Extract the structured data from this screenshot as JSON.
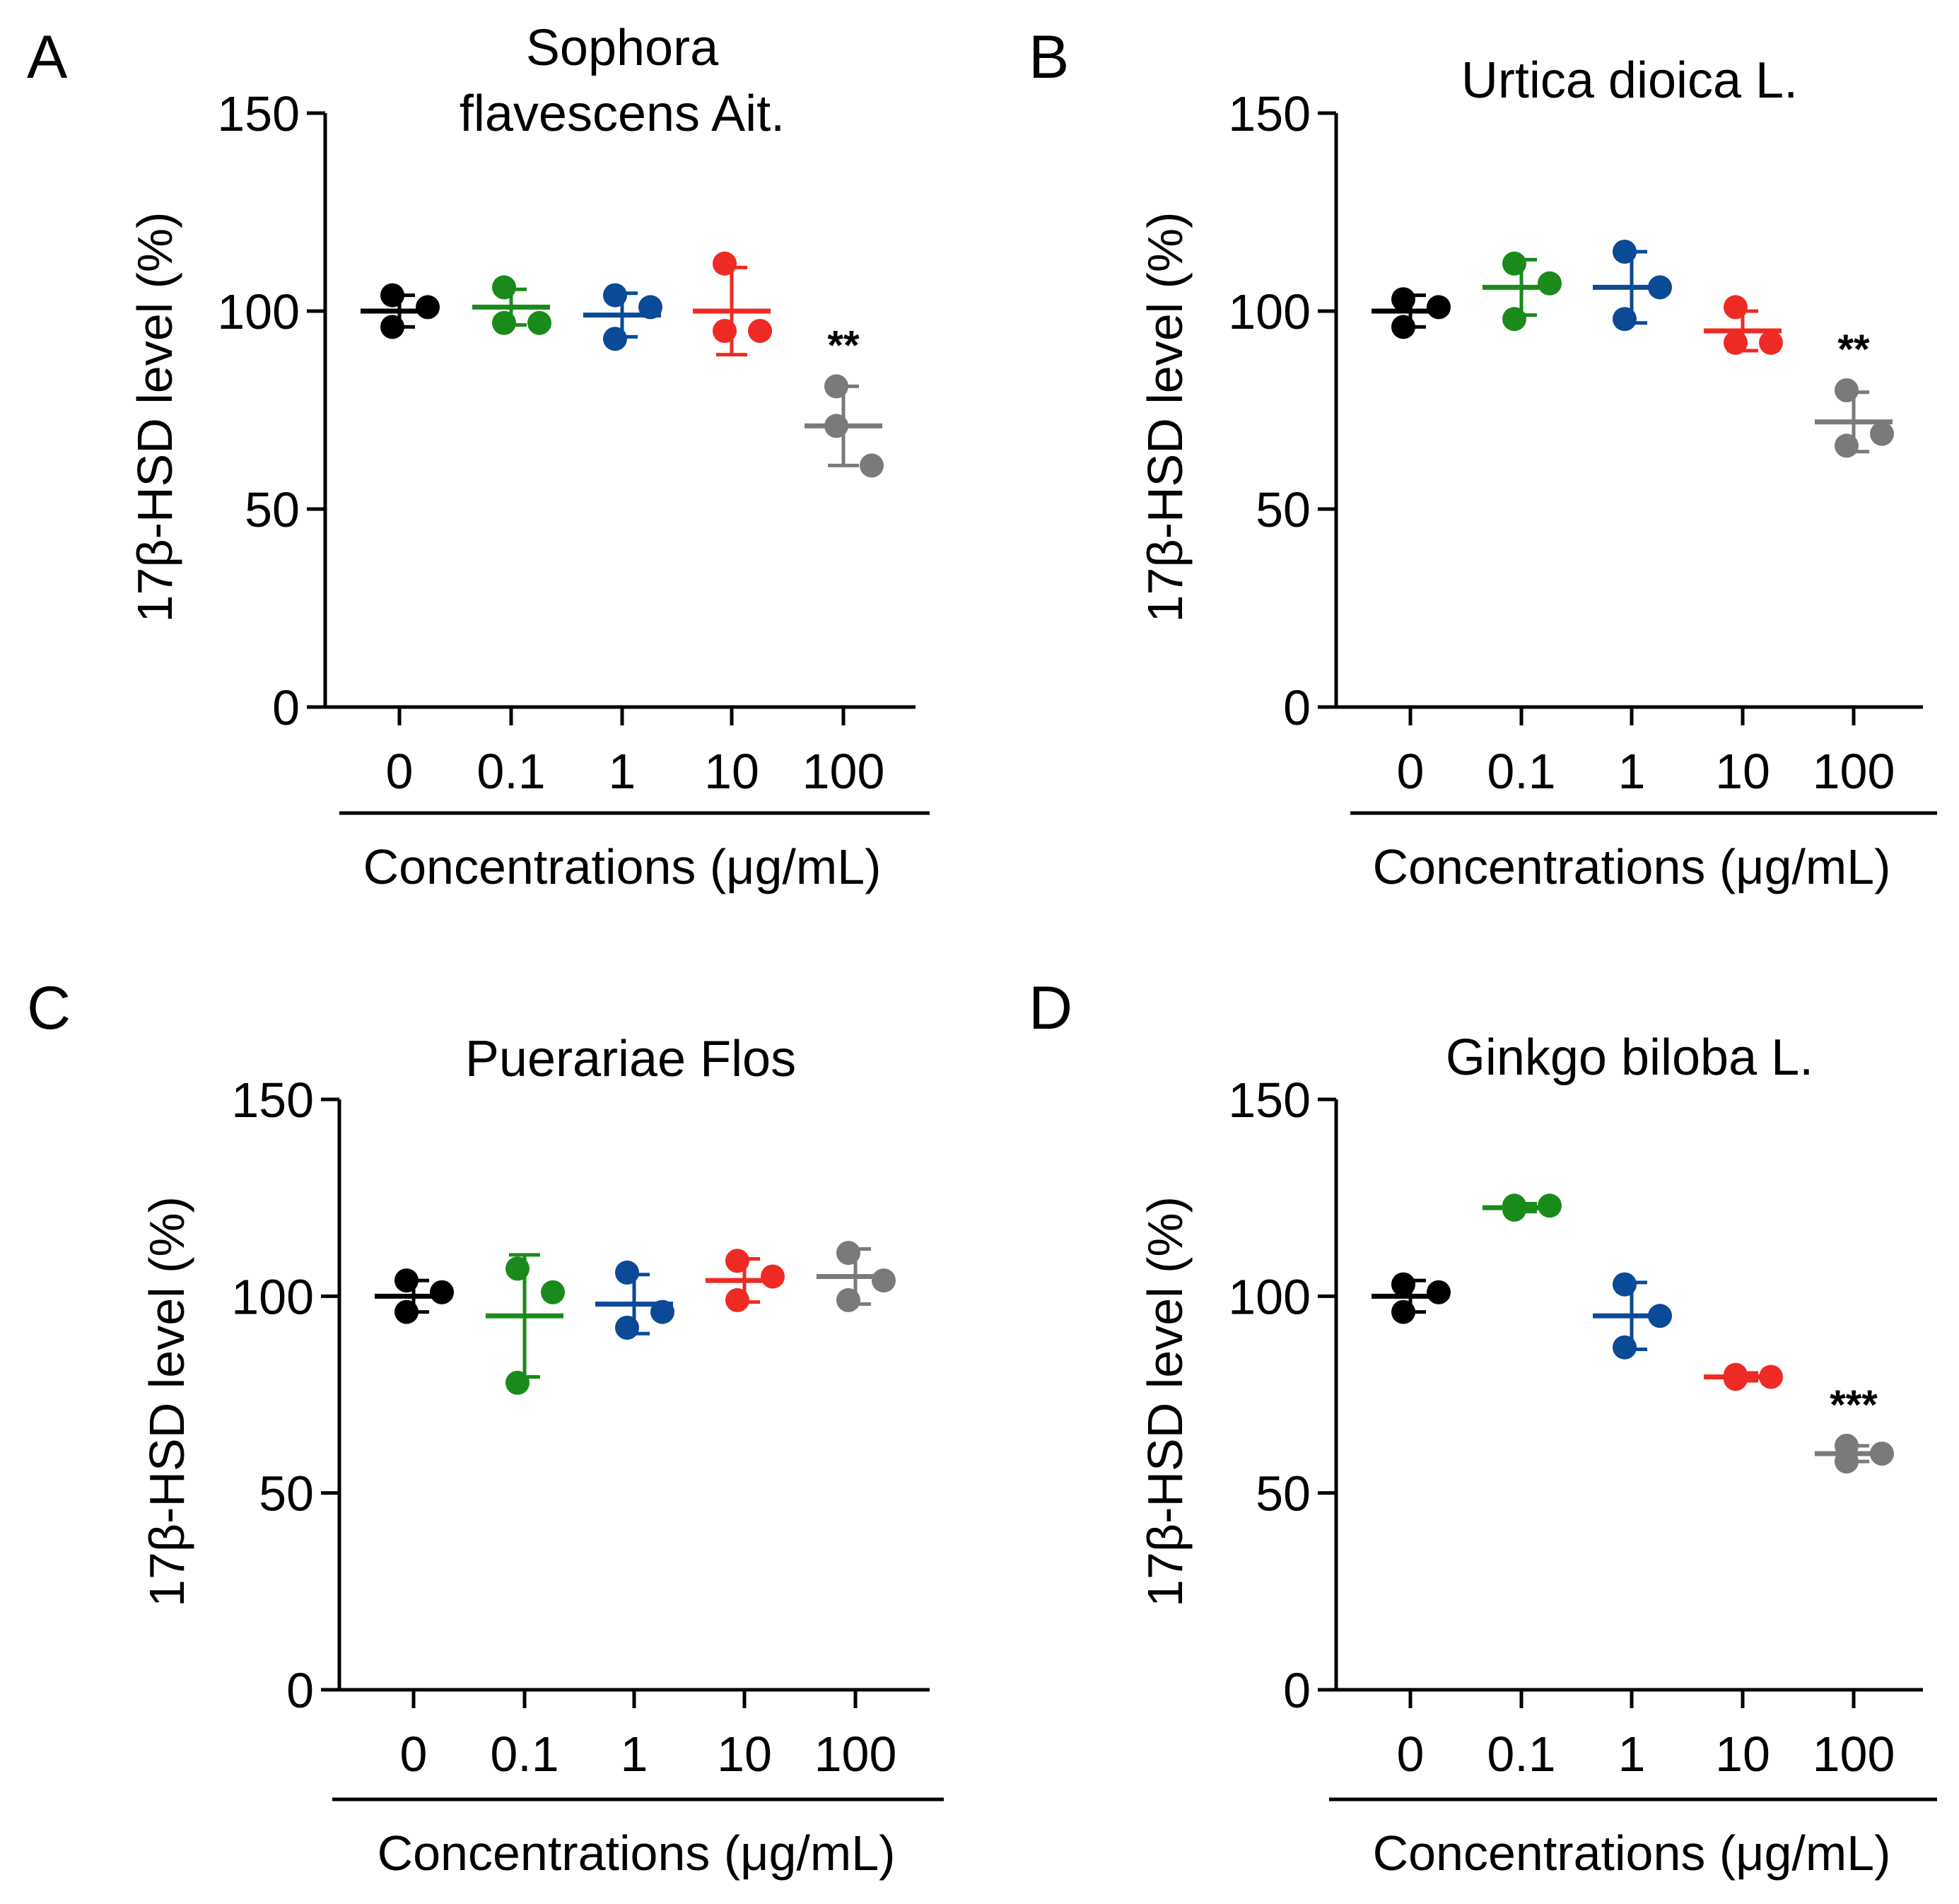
{
  "figure": {
    "colors": {
      "0": "#000000",
      "0.1": "#1a8a1a",
      "1": "#0a4a96",
      "10": "#ee2a24",
      "100": "#7a7a7a"
    }
  },
  "chart_data": [
    {
      "type": "scatter",
      "panel": "A",
      "title": "Sophora flavescens Ait.",
      "title_lines": [
        "Sophora",
        "flavescens Ait."
      ],
      "ylabel": "17β-HSD level (%)",
      "xlabel": "Concentrations (μg/mL)",
      "categories": [
        "0",
        "0.1",
        "1",
        "10",
        "100"
      ],
      "yticks": [
        0,
        50,
        100,
        150
      ],
      "ylim": [
        0,
        150
      ],
      "groups": [
        {
          "category": "0",
          "points": [
            104,
            96,
            101
          ],
          "mean": 100,
          "sd": 4
        },
        {
          "category": "0.1",
          "points": [
            106,
            97,
            97
          ],
          "mean": 101,
          "sd": 4.5
        },
        {
          "category": "1",
          "points": [
            104,
            93,
            101
          ],
          "mean": 99,
          "sd": 5.5
        },
        {
          "category": "10",
          "points": [
            112,
            95,
            95
          ],
          "mean": 100,
          "sd": 11
        },
        {
          "category": "100",
          "points": [
            81,
            71,
            61
          ],
          "mean": 71,
          "sd": 10,
          "sig": "**"
        }
      ]
    },
    {
      "type": "scatter",
      "panel": "B",
      "title": "Urtica dioica L.",
      "title_lines": [
        "Urtica dioica L."
      ],
      "ylabel": "17β-HSD level (%)",
      "xlabel": "Concentrations (μg/mL)",
      "categories": [
        "0",
        "0.1",
        "1",
        "10",
        "100"
      ],
      "yticks": [
        0,
        50,
        100,
        150
      ],
      "ylim": [
        0,
        150
      ],
      "groups": [
        {
          "category": "0",
          "points": [
            103,
            96,
            101
          ],
          "mean": 100,
          "sd": 4
        },
        {
          "category": "0.1",
          "points": [
            112,
            98,
            107
          ],
          "mean": 106,
          "sd": 7
        },
        {
          "category": "1",
          "points": [
            115,
            98,
            106
          ],
          "mean": 106,
          "sd": 9
        },
        {
          "category": "10",
          "points": [
            101,
            92,
            92
          ],
          "mean": 95,
          "sd": 5
        },
        {
          "category": "100",
          "points": [
            80,
            66,
            69
          ],
          "mean": 72,
          "sd": 7.5,
          "sig": "**"
        }
      ]
    },
    {
      "type": "scatter",
      "panel": "C",
      "title": "Puerariae Flos",
      "title_lines": [
        "Puerariae Flos"
      ],
      "ylabel": "17β-HSD level (%)",
      "xlabel": "Concentrations (μg/mL)",
      "categories": [
        "0",
        "0.1",
        "1",
        "10",
        "100"
      ],
      "yticks": [
        0,
        50,
        100,
        150
      ],
      "ylim": [
        0,
        150
      ],
      "groups": [
        {
          "category": "0",
          "points": [
            104,
            96,
            101
          ],
          "mean": 100,
          "sd": 4
        },
        {
          "category": "0.1",
          "points": [
            107,
            78,
            101
          ],
          "mean": 95,
          "sd": 15.5
        },
        {
          "category": "1",
          "points": [
            106,
            92,
            96
          ],
          "mean": 98,
          "sd": 7.5
        },
        {
          "category": "10",
          "points": [
            109,
            99,
            105
          ],
          "mean": 104,
          "sd": 5.5
        },
        {
          "category": "100",
          "points": [
            111,
            99,
            104
          ],
          "mean": 105,
          "sd": 7
        }
      ]
    },
    {
      "type": "scatter",
      "panel": "D",
      "title": "Ginkgo biloba L.",
      "title_lines": [
        "Ginkgo biloba L."
      ],
      "ylabel": "17β-HSD level (%)",
      "xlabel": "Concentrations (μg/mL)",
      "categories": [
        "0",
        "0.1",
        "1",
        "10",
        "100"
      ],
      "yticks": [
        0,
        50,
        100,
        150
      ],
      "ylim": [
        0,
        150
      ],
      "groups": [
        {
          "category": "0",
          "points": [
            103,
            96,
            101
          ],
          "mean": 100,
          "sd": 4
        },
        {
          "category": "0.1",
          "points": [
            123,
            122,
            123
          ],
          "mean": 122.5,
          "sd": 1
        },
        {
          "category": "1",
          "points": [
            103,
            87,
            95
          ],
          "mean": 95,
          "sd": 8.5
        },
        {
          "category": "10",
          "points": [
            79,
            80,
            79.5
          ],
          "mean": 79.5,
          "sd": 1
        },
        {
          "category": "100",
          "points": [
            62,
            58,
            60
          ],
          "mean": 60,
          "sd": 2,
          "sig": "***"
        }
      ]
    }
  ]
}
